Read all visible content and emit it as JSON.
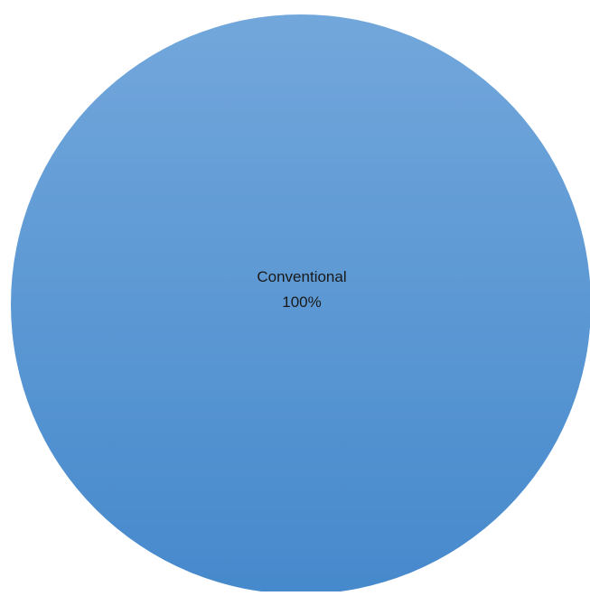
{
  "chart_data": {
    "type": "pie",
    "title": "",
    "categories": [
      "Conventional"
    ],
    "values": [
      100
    ],
    "series": [
      {
        "values": [
          100
        ]
      }
    ],
    "data_labels": [
      {
        "category": "Conventional",
        "percent": "100%"
      }
    ],
    "legend": "none",
    "colors": {
      "slice_top": "#72a7db",
      "slice_bottom": "#4689cc",
      "background": "#ffffff"
    }
  }
}
